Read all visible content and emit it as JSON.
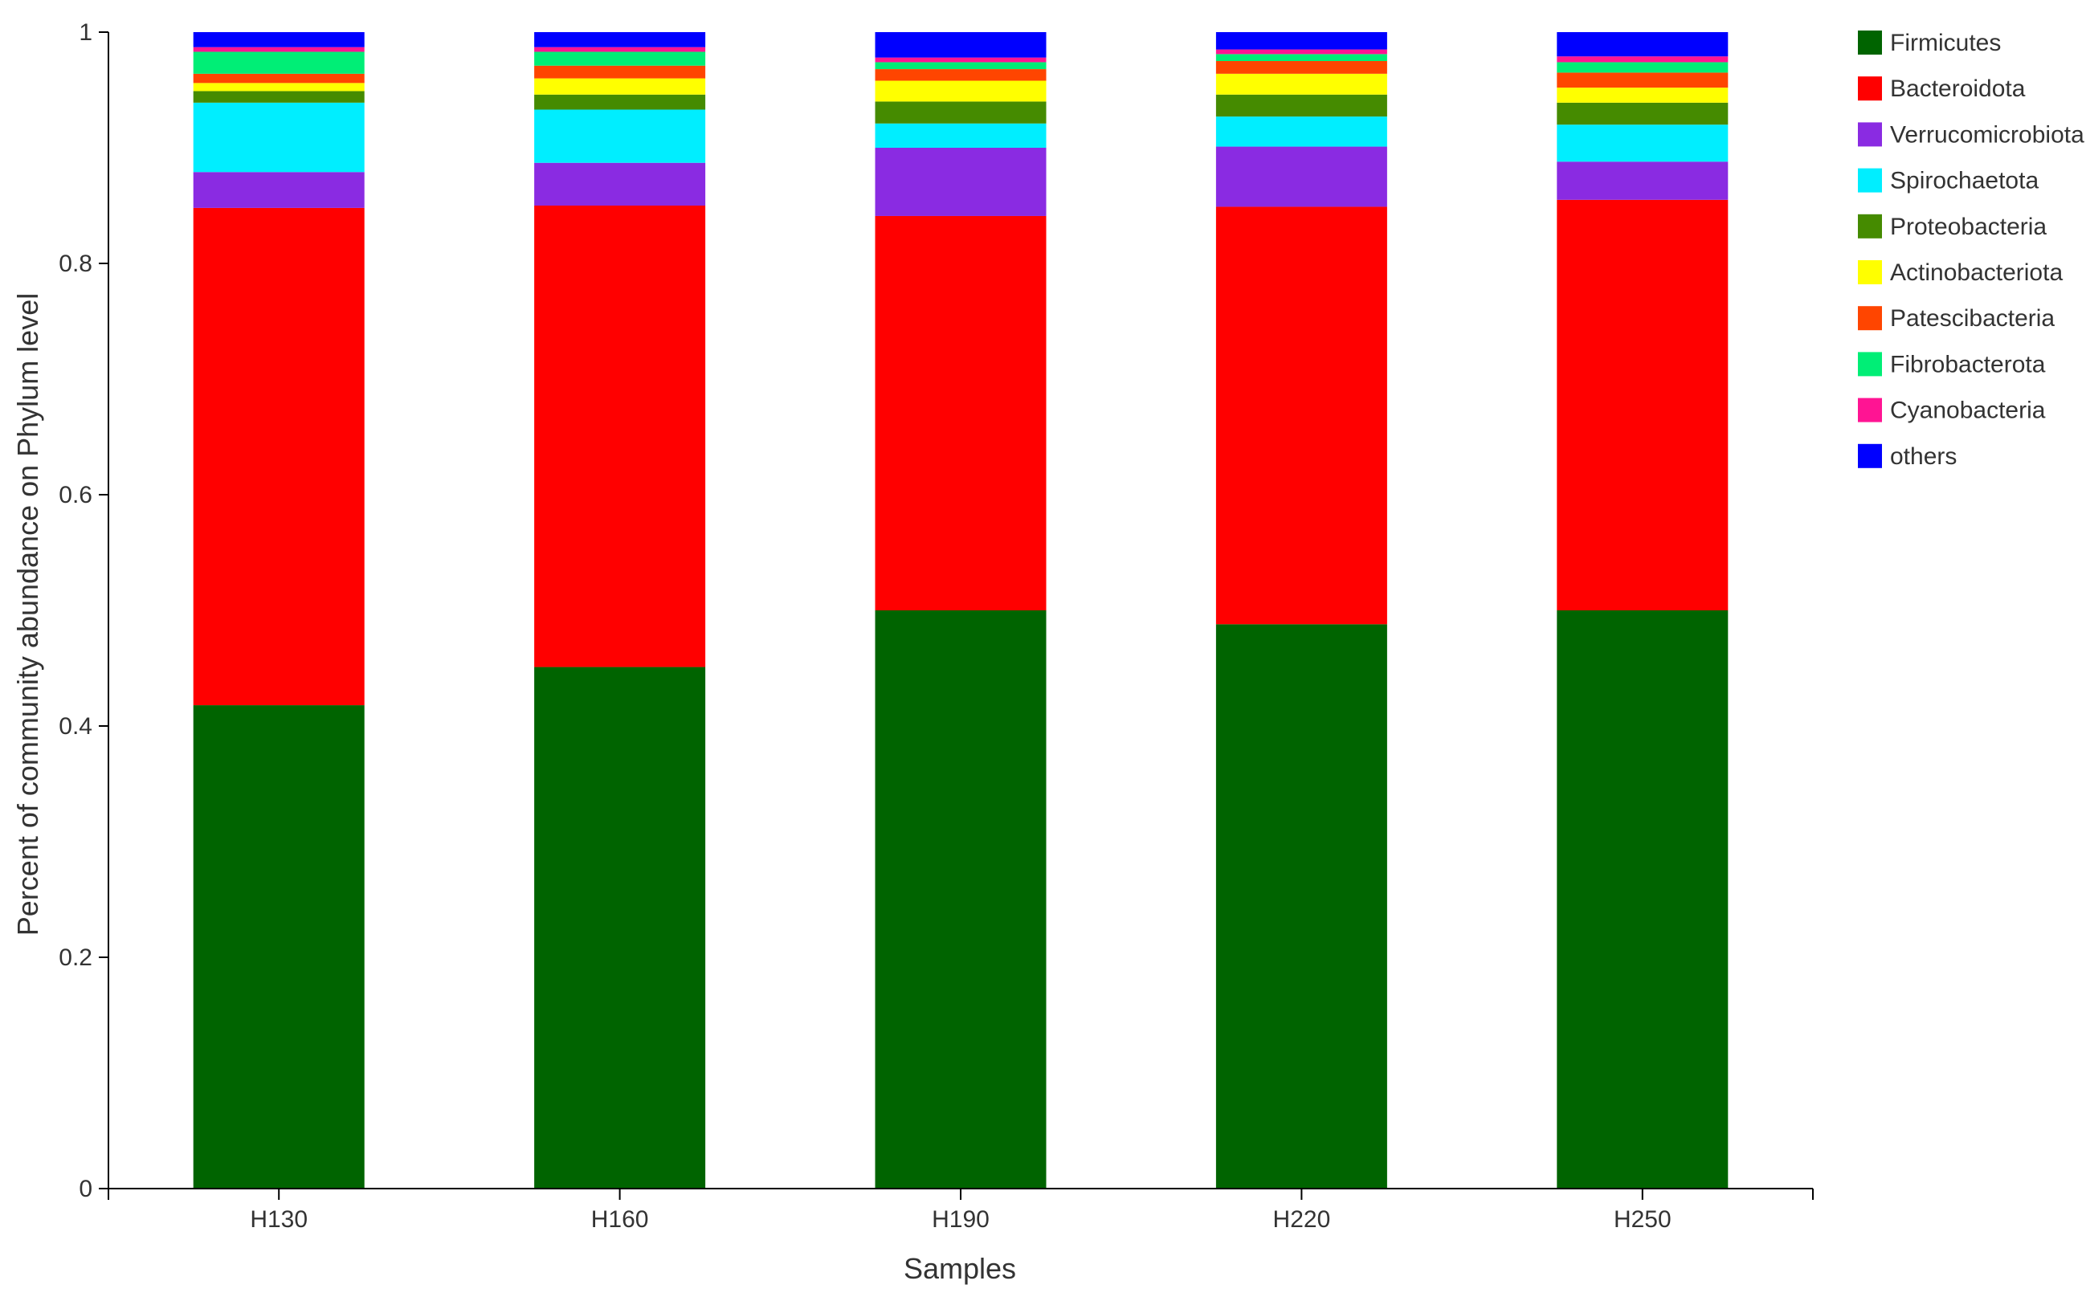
{
  "chart_data": {
    "type": "bar",
    "stacked": true,
    "xlabel": "Samples",
    "ylabel": "Percent of community abundance on Phylum level",
    "ylim": [
      0,
      1
    ],
    "yticks": [
      0,
      0.2,
      0.4,
      0.6,
      0.8,
      1
    ],
    "ytick_labels": [
      "0",
      "0.2",
      "0.4",
      "0.6",
      "0.8",
      "1"
    ],
    "grid": false,
    "legend_position": "right",
    "categories": [
      "H130",
      "H160",
      "H190",
      "H220",
      "H250"
    ],
    "series": [
      {
        "name": "Firmicutes",
        "color": "#006400",
        "values": [
          0.418,
          0.451,
          0.5,
          0.488,
          0.5
        ]
      },
      {
        "name": "Bacteroidota",
        "color": "#ff0000",
        "values": [
          0.43,
          0.399,
          0.341,
          0.361,
          0.355
        ]
      },
      {
        "name": "Verrucomicrobiota",
        "color": "#8a2be2",
        "values": [
          0.031,
          0.037,
          0.059,
          0.052,
          0.033
        ]
      },
      {
        "name": "Spirochaetota",
        "color": "#00eeff",
        "values": [
          0.06,
          0.046,
          0.021,
          0.026,
          0.032
        ]
      },
      {
        "name": "Proteobacteria",
        "color": "#458b00",
        "values": [
          0.01,
          0.013,
          0.019,
          0.019,
          0.019
        ]
      },
      {
        "name": "Actinobacteriota",
        "color": "#ffff00",
        "values": [
          0.007,
          0.014,
          0.018,
          0.018,
          0.013
        ]
      },
      {
        "name": "Patescibacteria",
        "color": "#ff4500",
        "values": [
          0.008,
          0.011,
          0.01,
          0.011,
          0.013
        ]
      },
      {
        "name": "Fibrobacterota",
        "color": "#00ee76",
        "values": [
          0.019,
          0.012,
          0.006,
          0.006,
          0.009
        ]
      },
      {
        "name": "Cyanobacteria",
        "color": "#ff1493",
        "values": [
          0.004,
          0.004,
          0.004,
          0.004,
          0.005
        ]
      },
      {
        "name": "others",
        "color": "#0000ff",
        "values": [
          0.013,
          0.013,
          0.022,
          0.015,
          0.021
        ]
      }
    ]
  }
}
